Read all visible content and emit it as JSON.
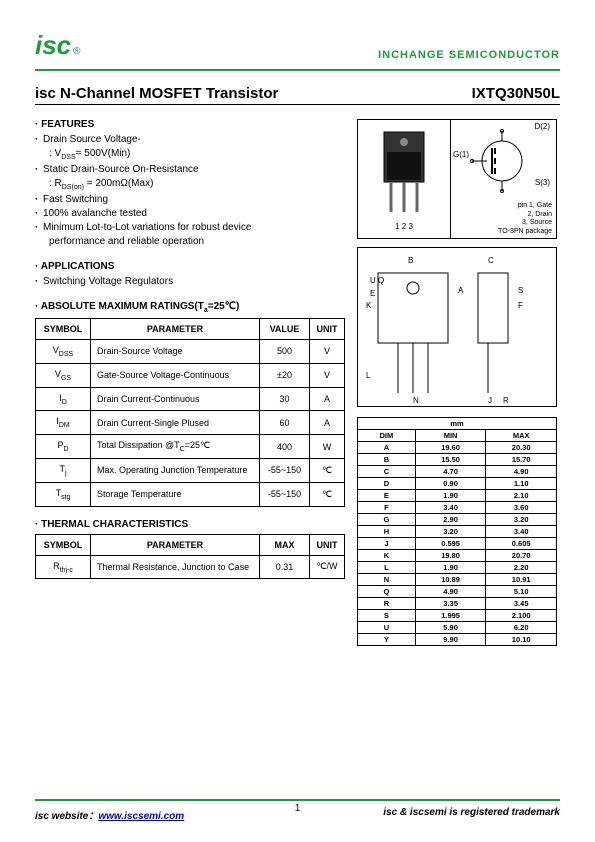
{
  "header": {
    "logo_text": "isc",
    "logo_reg": "®",
    "brand": "INCHANGE SEMICONDUCTOR"
  },
  "title": {
    "left": "isc N-Channel MOSFET Transistor",
    "right": "IXTQ30N50L"
  },
  "features": {
    "head": "· FEATURES",
    "items": [
      "Drain Source Voltage-",
      "Static Drain-Source On-Resistance",
      "Fast Switching",
      "100% avalanche tested",
      "Minimum Lot-to-Lot variations for robust device"
    ],
    "sub_vdss": ": VDSS= 500V(Min)",
    "sub_rds": ": RDS(on) = 200mΩ(Max)",
    "sub_perf": "performance and reliable operation"
  },
  "applications": {
    "head": "· APPLICATIONS",
    "items": [
      "Switching Voltage Regulators"
    ]
  },
  "ratings": {
    "head": "· ABSOLUTE MAXIMUM RATINGS(Ta=25℃)",
    "cols": [
      "SYMBOL",
      "PARAMETER",
      "VALUE",
      "UNIT"
    ],
    "rows": [
      {
        "sym": "VDSS",
        "param": "Drain-Source Voltage",
        "val": "500",
        "unit": "V"
      },
      {
        "sym": "VGS",
        "param": "Gate-Source Voltage-Continuous",
        "val": "±20",
        "unit": "V"
      },
      {
        "sym": "ID",
        "param": "Drain Current-Continuous",
        "val": "30",
        "unit": "A"
      },
      {
        "sym": "IDM",
        "param": "Drain Current-Single Plused",
        "val": "60",
        "unit": "A"
      },
      {
        "sym": "PD",
        "param": "Total Dissipation @TC=25℃",
        "val": "400",
        "unit": "W"
      },
      {
        "sym": "Tj",
        "param": "Max. Operating Junction Temperature",
        "val": "-55~150",
        "unit": "℃"
      },
      {
        "sym": "Tstg",
        "param": "Storage Temperature",
        "val": "-55~150",
        "unit": "℃"
      }
    ]
  },
  "thermal": {
    "head": "· THERMAL CHARACTERISTICS",
    "cols": [
      "SYMBOL",
      "PARAMETER",
      "MAX",
      "UNIT"
    ],
    "rows": [
      {
        "sym": "Rthj-c",
        "param": "Thermal Resistance, Junction to Case",
        "val": "0.31",
        "unit": "℃/W"
      }
    ]
  },
  "package": {
    "pins": "1  2  3",
    "d_label": "D(2)",
    "g_label": "G(1)",
    "s_label": "S(3)",
    "pin_text1": "pin 1, Gate",
    "pin_text2": "2, Drain",
    "pin_text3": "3, Source",
    "pkg_name": "TO-3PN package"
  },
  "dimensions": {
    "head_mm": "mm",
    "cols": [
      "DIM",
      "MIN",
      "MAX"
    ],
    "rows": [
      [
        "A",
        "19.60",
        "20.30"
      ],
      [
        "B",
        "15.50",
        "15.70"
      ],
      [
        "C",
        "4.70",
        "4.90"
      ],
      [
        "D",
        "0.90",
        "1.10"
      ],
      [
        "E",
        "1.90",
        "2.10"
      ],
      [
        "F",
        "3.40",
        "3.60"
      ],
      [
        "G",
        "2.90",
        "3.20"
      ],
      [
        "H",
        "3.20",
        "3.40"
      ],
      [
        "J",
        "0.595",
        "0.605"
      ],
      [
        "K",
        "19.80",
        "20.70"
      ],
      [
        "L",
        "1.90",
        "2.20"
      ],
      [
        "N",
        "10.89",
        "10.91"
      ],
      [
        "Q",
        "4.90",
        "5.10"
      ],
      [
        "R",
        "3.35",
        "3.45"
      ],
      [
        "S",
        "1.995",
        "2.100"
      ],
      [
        "U",
        "5.90",
        "6.20"
      ],
      [
        "Y",
        "9.90",
        "10.10"
      ]
    ]
  },
  "footer": {
    "website_label": "isc website：",
    "website_url": "www.iscsemi.com",
    "trademark": "isc & iscsemi is registered trademark",
    "page": "1"
  }
}
